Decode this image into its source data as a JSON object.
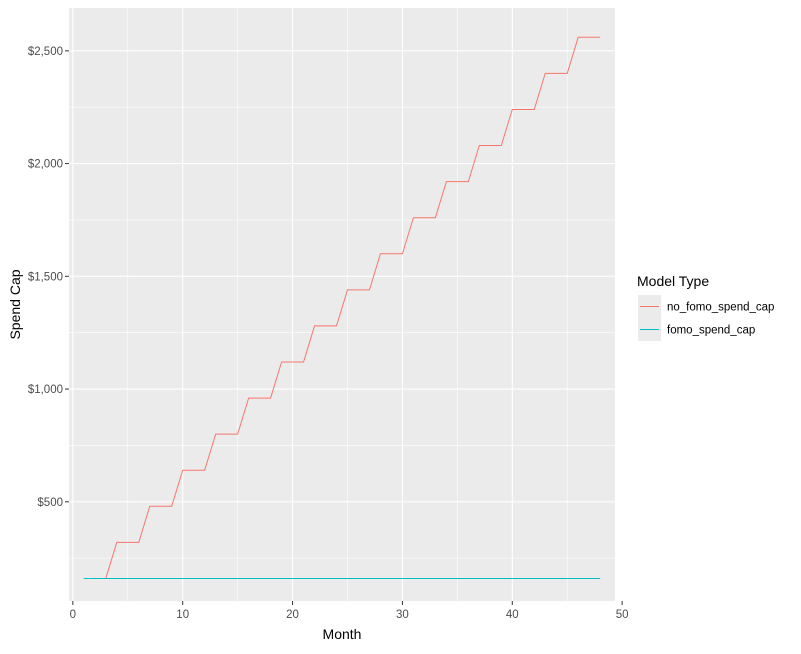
{
  "chart_data": {
    "type": "line",
    "title": "",
    "xlabel": "Month",
    "ylabel": "Spend Cap",
    "xlim": [
      -0.35,
      49.35
    ],
    "ylim": [
      60,
      2690
    ],
    "x_ticks": [
      {
        "value": 0,
        "label": "0"
      },
      {
        "value": 10,
        "label": "10"
      },
      {
        "value": 20,
        "label": "20"
      },
      {
        "value": 30,
        "label": "30"
      },
      {
        "value": 40,
        "label": "40"
      },
      {
        "value": 50,
        "label": "50"
      }
    ],
    "y_ticks": [
      {
        "value": 500,
        "label": "$500"
      },
      {
        "value": 1000,
        "label": "$1,000"
      },
      {
        "value": 1500,
        "label": "$1,500"
      },
      {
        "value": 2000,
        "label": "$2,000"
      },
      {
        "value": 2500,
        "label": "$2,500"
      }
    ],
    "grid": true,
    "panel_background": "#ebebeb",
    "grid_color": "#ffffff",
    "legend": {
      "title": "Model Type",
      "placement": "right"
    },
    "series": [
      {
        "name": "no_fomo_spend_cap",
        "color": "#f8766d",
        "x": [
          1,
          2,
          3,
          4,
          5,
          6,
          7,
          8,
          9,
          10,
          11,
          12,
          13,
          14,
          15,
          16,
          17,
          18,
          19,
          20,
          21,
          22,
          23,
          24,
          25,
          26,
          27,
          28,
          29,
          30,
          31,
          32,
          33,
          34,
          35,
          36,
          37,
          38,
          39,
          40,
          41,
          42,
          43,
          44,
          45,
          46,
          47,
          48
        ],
        "y": [
          160,
          160,
          160,
          320,
          320,
          320,
          480,
          480,
          480,
          640,
          640,
          640,
          800,
          800,
          800,
          960,
          960,
          960,
          1120,
          1120,
          1120,
          1280,
          1280,
          1280,
          1440,
          1440,
          1440,
          1600,
          1600,
          1600,
          1760,
          1760,
          1760,
          1920,
          1920,
          1920,
          2080,
          2080,
          2080,
          2240,
          2240,
          2240,
          2400,
          2400,
          2400,
          2560,
          2560,
          2560
        ]
      },
      {
        "name": "fomo_spend_cap",
        "color": "#00bfc4",
        "x": [
          1,
          2,
          3,
          4,
          5,
          6,
          7,
          8,
          9,
          10,
          11,
          12,
          13,
          14,
          15,
          16,
          17,
          18,
          19,
          20,
          21,
          22,
          23,
          24,
          25,
          26,
          27,
          28,
          29,
          30,
          31,
          32,
          33,
          34,
          35,
          36,
          37,
          38,
          39,
          40,
          41,
          42,
          43,
          44,
          45,
          46,
          47,
          48
        ],
        "y": [
          160,
          160,
          160,
          160,
          160,
          160,
          160,
          160,
          160,
          160,
          160,
          160,
          160,
          160,
          160,
          160,
          160,
          160,
          160,
          160,
          160,
          160,
          160,
          160,
          160,
          160,
          160,
          160,
          160,
          160,
          160,
          160,
          160,
          160,
          160,
          160,
          160,
          160,
          160,
          160,
          160,
          160,
          160,
          160,
          160,
          160,
          160,
          160
        ]
      }
    ]
  }
}
